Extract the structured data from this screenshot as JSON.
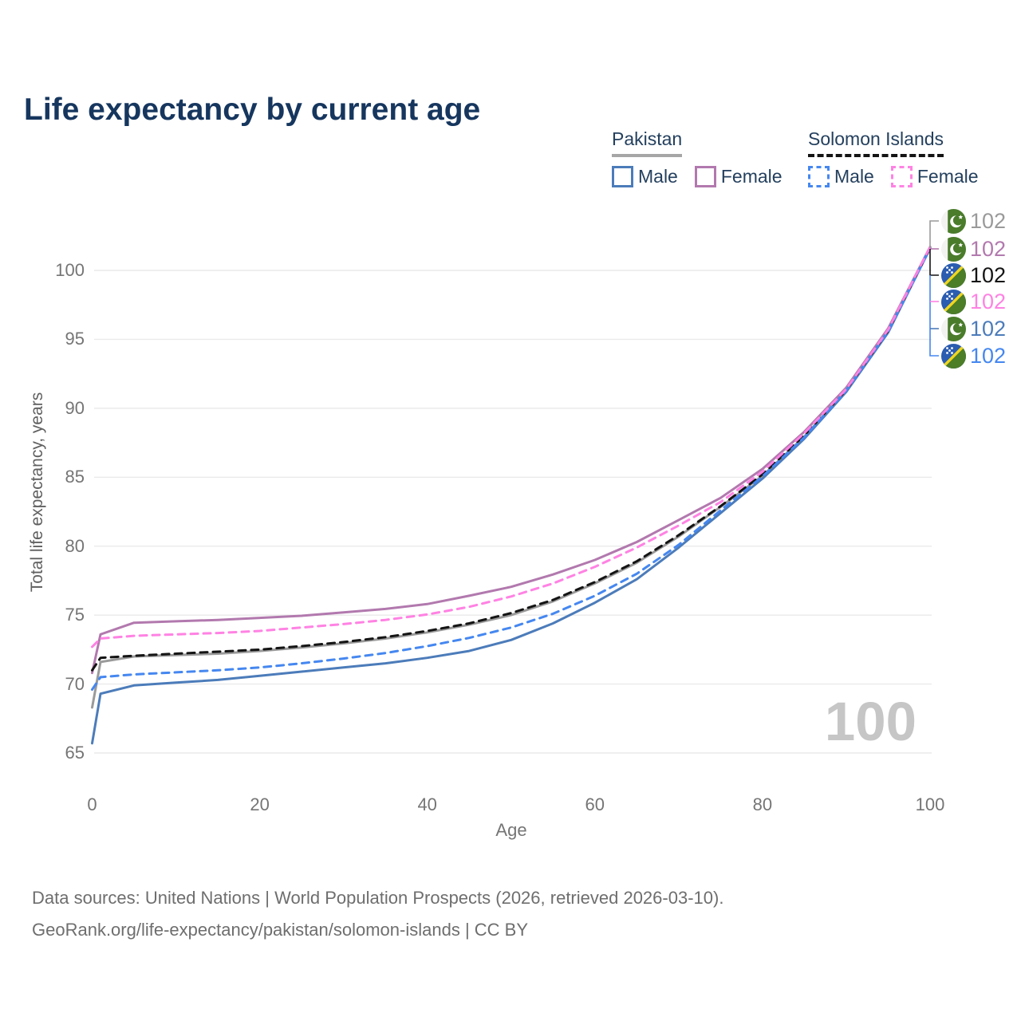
{
  "title": "Life expectancy by current age",
  "legend": {
    "groups": [
      {
        "label": "Pakistan",
        "rule_style": "solid",
        "rule_color": "#a6a6a6",
        "items": [
          {
            "label": "Male",
            "color": "#4c7cba",
            "dashed": false
          },
          {
            "label": "Female",
            "color": "#b279ae",
            "dashed": false
          }
        ]
      },
      {
        "label": "Solomon Islands",
        "rule_style": "dashed",
        "rule_color": "#141414",
        "items": [
          {
            "label": "Male",
            "color": "#4587f0",
            "dashed": true
          },
          {
            "label": "Female",
            "color": "#ff82e3",
            "dashed": true
          }
        ]
      }
    ]
  },
  "chart_data": {
    "type": "line",
    "title": "Life expectancy by current age",
    "xlabel": "Age",
    "ylabel": "Total life expectancy, years",
    "xlim": [
      0,
      100
    ],
    "ylim": [
      63.5,
      103.5
    ],
    "x_ticks": [
      0,
      20,
      40,
      60,
      80,
      100
    ],
    "y_ticks": [
      65,
      70,
      75,
      80,
      85,
      90,
      95,
      100
    ],
    "grid": "horizontal",
    "legend_position": "top-right",
    "x": [
      0,
      1,
      5,
      10,
      15,
      20,
      25,
      30,
      35,
      40,
      45,
      50,
      55,
      60,
      65,
      70,
      75,
      80,
      85,
      90,
      95,
      100
    ],
    "series": [
      {
        "id": "pakistan-total",
        "name": "Pakistan — Total",
        "country": "Pakistan",
        "sex": "Total",
        "color": "#9a9a9a",
        "dashed": false,
        "values": [
          68.3,
          71.6,
          72.0,
          72.1,
          72.2,
          72.4,
          72.65,
          72.95,
          73.3,
          73.75,
          74.3,
          75.0,
          76.0,
          77.3,
          78.8,
          80.7,
          82.85,
          85.1,
          87.95,
          91.3,
          95.6,
          101.6
        ]
      },
      {
        "id": "pakistan-female",
        "name": "Pakistan — Female",
        "country": "Pakistan",
        "sex": "Female",
        "color": "#b279ae",
        "dashed": false,
        "values": [
          70.8,
          73.6,
          74.45,
          74.55,
          74.65,
          74.8,
          74.95,
          75.2,
          75.45,
          75.8,
          76.4,
          77.05,
          77.95,
          79.0,
          80.3,
          81.9,
          83.5,
          85.6,
          88.3,
          91.5,
          95.8,
          101.7
        ]
      },
      {
        "id": "pakistan-male",
        "name": "Pakistan — Male",
        "country": "Pakistan",
        "sex": "Male",
        "color": "#4c7cba",
        "dashed": false,
        "values": [
          65.7,
          69.3,
          69.9,
          70.1,
          70.3,
          70.6,
          70.9,
          71.2,
          71.5,
          71.9,
          72.4,
          73.2,
          74.4,
          75.9,
          77.6,
          79.9,
          82.4,
          84.9,
          87.8,
          91.2,
          95.5,
          101.6
        ]
      },
      {
        "id": "solomon-islands-total",
        "name": "Solomon Islands — Total",
        "country": "Solomon Islands",
        "sex": "Total",
        "color": "#141414",
        "dashed": true,
        "values": [
          71.0,
          71.9,
          72.05,
          72.2,
          72.35,
          72.5,
          72.75,
          73.05,
          73.4,
          73.85,
          74.4,
          75.15,
          76.1,
          77.4,
          78.9,
          80.8,
          82.9,
          85.2,
          88.05,
          91.35,
          95.65,
          101.65
        ]
      },
      {
        "id": "solomon-islands-male",
        "name": "Solomon Islands — Male",
        "country": "Solomon Islands",
        "sex": "Male",
        "color": "#4587f0",
        "dashed": true,
        "values": [
          69.6,
          70.5,
          70.7,
          70.85,
          71.0,
          71.2,
          71.5,
          71.85,
          72.25,
          72.75,
          73.35,
          74.1,
          75.1,
          76.4,
          78.0,
          80.1,
          82.6,
          85.05,
          87.9,
          91.3,
          95.6,
          101.6
        ]
      },
      {
        "id": "solomon-islands-female",
        "name": "Solomon Islands — Female",
        "country": "Solomon Islands",
        "sex": "Female",
        "color": "#ff82e3",
        "dashed": true,
        "values": [
          72.7,
          73.3,
          73.5,
          73.6,
          73.7,
          73.85,
          74.1,
          74.35,
          74.65,
          75.05,
          75.6,
          76.35,
          77.3,
          78.5,
          79.9,
          81.5,
          83.2,
          85.4,
          88.2,
          91.4,
          95.7,
          101.7
        ]
      }
    ],
    "end_labels": [
      {
        "flag": "pakistan-flag-icon",
        "label": "102",
        "color": "#9a9a9a",
        "series_id": "pakistan-total"
      },
      {
        "flag": "pakistan-flag-icon",
        "label": "102",
        "color": "#b279ae",
        "series_id": "pakistan-female"
      },
      {
        "flag": "solomon-islands-flag-icon",
        "label": "102",
        "color": "#141414",
        "series_id": "solomon-islands-total"
      },
      {
        "flag": "solomon-islands-flag-icon",
        "label": "102",
        "color": "#ff82e3",
        "series_id": "solomon-islands-female"
      },
      {
        "flag": "pakistan-flag-icon",
        "label": "102",
        "color": "#4c7cba",
        "series_id": "pakistan-male"
      },
      {
        "flag": "solomon-islands-flag-icon",
        "label": "102",
        "color": "#4587f0",
        "series_id": "solomon-islands-male"
      }
    ],
    "age_indicator": "100"
  },
  "watermark": "100",
  "footer": {
    "line1": "Data sources: United Nations | World Population Prospects (2026, retrieved 2026-03-10).",
    "line2": "GeoRank.org/life-expectancy/pakistan/solomon-islands | CC BY"
  }
}
